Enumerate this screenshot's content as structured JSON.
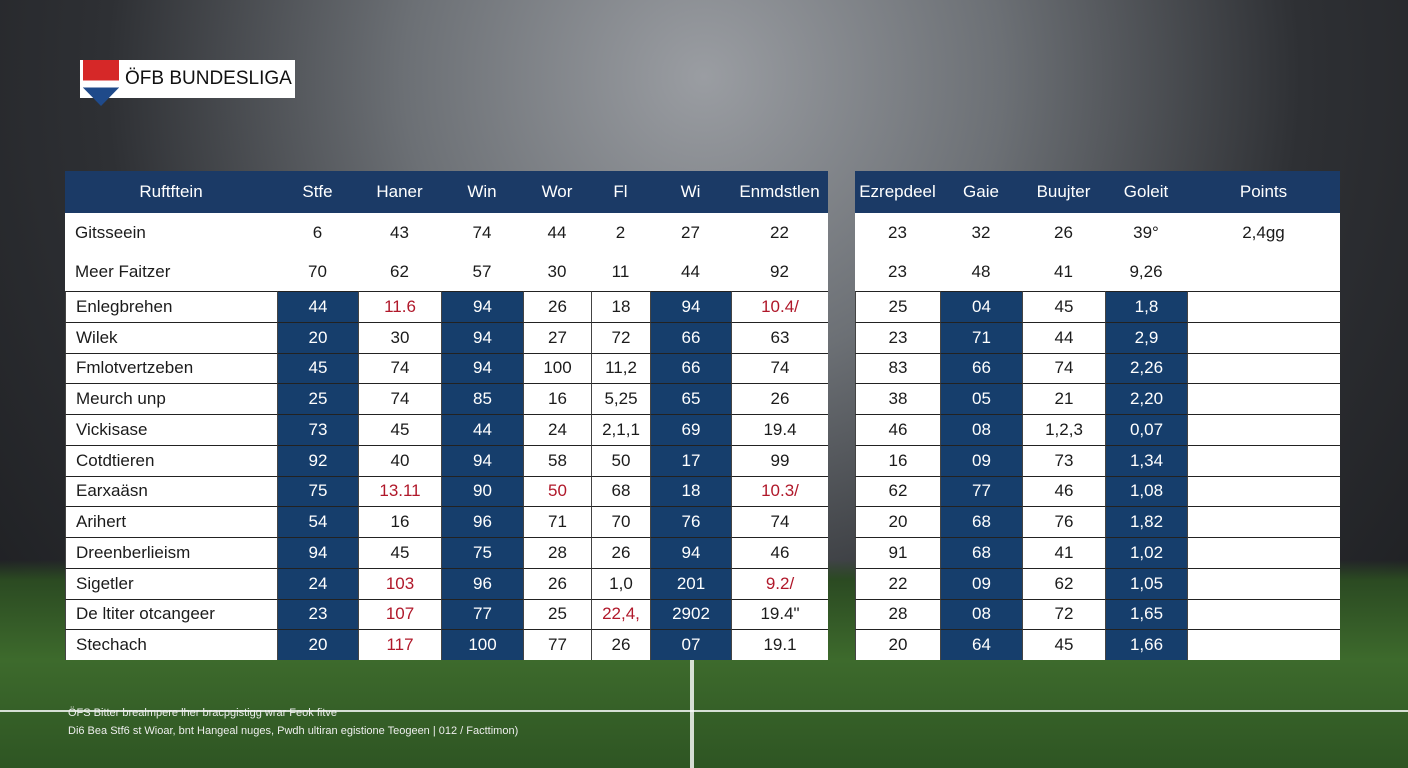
{
  "logo": {
    "text": "ÖFB BUNDESLIGA"
  },
  "left_table": {
    "columns": [
      "Ruftftein",
      "Stfe",
      "Haner",
      "Win",
      "Wor",
      "Fl",
      "Wi",
      "Enmdstlen"
    ],
    "rows": [
      [
        "Gitsseein",
        "6",
        "43",
        "74",
        "44",
        "2",
        "27",
        "22"
      ],
      [
        "Meer Faitzer",
        "70",
        "62",
        "57",
        "30",
        "11",
        "44",
        "92"
      ],
      [
        "Enlegbrehen",
        "44",
        "11.6",
        "94",
        "26",
        "18",
        "94",
        "10.4/"
      ],
      [
        "Wilek",
        "20",
        "30",
        "94",
        "27",
        "72",
        "66",
        "63"
      ],
      [
        "Fmlotvertzeben",
        "45",
        "74",
        "94",
        "100",
        "11,2",
        "66",
        "74"
      ],
      [
        "Meurch unp",
        "25",
        "74",
        "85",
        "16",
        "5,25",
        "65",
        "26"
      ],
      [
        "Vickisase",
        "73",
        "45",
        "44",
        "24",
        "2,1,1",
        "69",
        "19.4"
      ],
      [
        "Cotdtieren",
        "92",
        "40",
        "94",
        "58",
        "50",
        "17",
        "99"
      ],
      [
        "Earxaäsn",
        "75",
        "13.11",
        "90",
        "50",
        "68",
        "18",
        "10.3/"
      ],
      [
        "Arihert",
        "54",
        "16",
        "96",
        "71",
        "70",
        "76",
        "74"
      ],
      [
        "Dreenberlieism",
        "94",
        "45",
        "75",
        "28",
        "26",
        "94",
        "46"
      ],
      [
        "Sigetler",
        "24",
        "103",
        "96",
        "26",
        "1,0",
        "201",
        "9.2/"
      ],
      [
        "De ltiter otcangeer",
        "23",
        "107",
        "77",
        "25",
        "22,4,",
        "2902",
        "19.4\""
      ],
      [
        "Stechach",
        "20",
        "117",
        "100",
        "77",
        "26",
        "07",
        "19.1"
      ]
    ]
  },
  "right_table": {
    "columns": [
      "Ezrepdeel",
      "Gaie",
      "Buujter",
      "Goleit",
      "Points"
    ],
    "rows": [
      [
        "23",
        "32",
        "26",
        "39°",
        "2,4gg"
      ],
      [
        "23",
        "48",
        "41",
        "9,26"
      ],
      [
        "25",
        "04",
        "45",
        "1,8"
      ],
      [
        "23",
        "71",
        "44",
        "2,9"
      ],
      [
        "83",
        "66",
        "74",
        "2,26"
      ],
      [
        "38",
        "05",
        "21",
        "2,20"
      ],
      [
        "46",
        "08",
        "1,2,3",
        "0,07"
      ],
      [
        "16",
        "09",
        "73",
        "1,34"
      ],
      [
        "62",
        "77",
        "46",
        "1,08"
      ],
      [
        "20",
        "68",
        "76",
        "1,82"
      ],
      [
        "91",
        "68",
        "41",
        "1,02"
      ],
      [
        "22",
        "09",
        "62",
        "1,05"
      ],
      [
        "28",
        "08",
        "72",
        "1,65"
      ],
      [
        "20",
        "64",
        "45",
        "1,66"
      ]
    ]
  },
  "footer": {
    "lines": [
      "ÖFS Bitter brealmpere lher bracpgistigg wrar Feok fitve",
      "Di6 Bea Stf6 st Wioar, bnt Hangeal nuges, Pwdh ultiran egistione Teogeen | 012 / Facttimon)"
    ]
  }
}
